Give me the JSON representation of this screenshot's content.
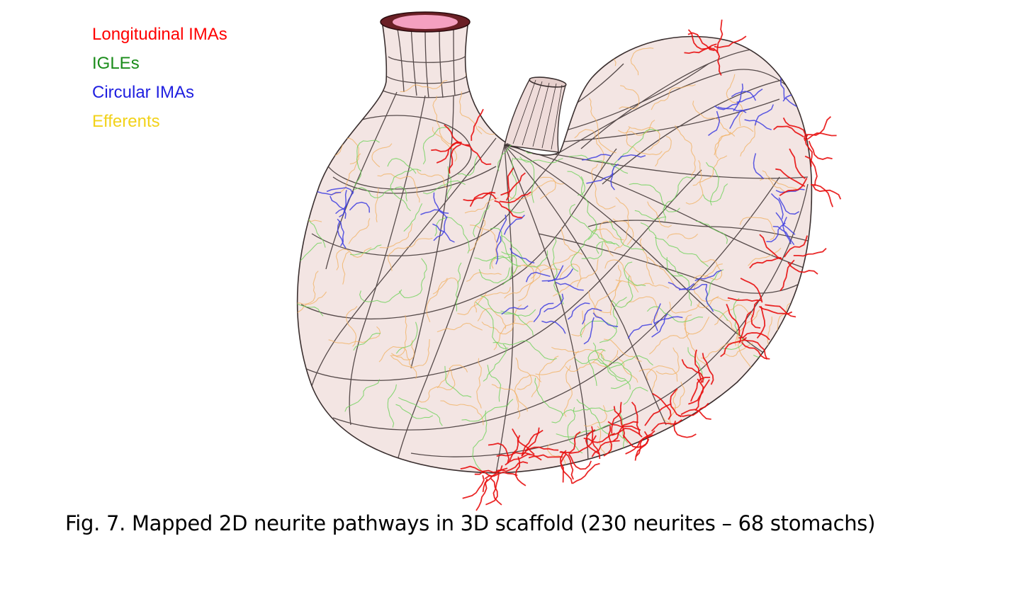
{
  "legend": [
    {
      "label": "Longitudinal IMAs",
      "color": "#ff0000"
    },
    {
      "label": "IGLEs",
      "color": "#1a8c1a"
    },
    {
      "label": "Circular IMAs",
      "color": "#1f1fe0"
    },
    {
      "label": "Efferents",
      "color": "#f2d21a"
    }
  ],
  "colors": {
    "surface_fill": "#f1e0de",
    "mesh_line": "#3a2f2f",
    "esophagus_inner": "#f4a0c0",
    "esophagus_rim": "#6a1f25",
    "longitudinal": "#e81010",
    "igle": "#6fd25a",
    "circular": "#4040e0",
    "efferent": "#f2b060"
  },
  "caption": "Fig. 7. Mapped 2D neurite pathways in 3D scaffold (230 neurites – 68 stomachs)"
}
